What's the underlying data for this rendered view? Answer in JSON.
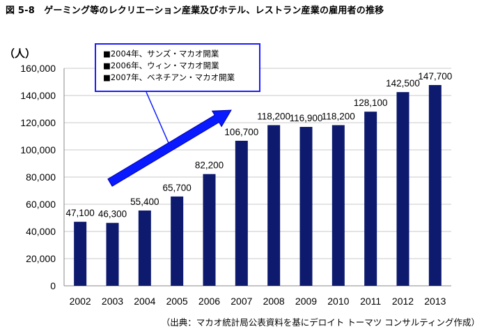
{
  "title": "図 5-8　ゲーミング等のレクリエーション産業及びホテル、レストラン産業の雇用者の推移",
  "source": "（出典：マカオ統計局公表資料を基にデロイト トーマツ コンサルティング作成）",
  "annotation": [
    "■2004年、サンズ・マカオ開業",
    "■2006年、ウィン・マカオ開業",
    "■2007年、ベネチアン・マカオ開業"
  ],
  "colors": {
    "bar": "#0d1a6e",
    "arrow": "#0a1aff",
    "grid": "#c8c8c8"
  },
  "chart_data": {
    "type": "bar",
    "categories": [
      "2002",
      "2003",
      "2004",
      "2005",
      "2006",
      "2007",
      "2008",
      "2009",
      "2010",
      "2011",
      "2012",
      "2013"
    ],
    "values": [
      47100,
      46300,
      55400,
      65700,
      82200,
      106700,
      118200,
      116900,
      118200,
      128100,
      142500,
      147700
    ],
    "value_labels": [
      "47,100",
      "46,300",
      "55,400",
      "65,700",
      "82,200",
      "106,700",
      "118,200",
      "116,900",
      "118,200",
      "128,100",
      "142,500",
      "147,700"
    ],
    "ylabel": "（人）",
    "ylim": [
      0,
      160000
    ],
    "yticks": [
      "0",
      "20,000",
      "40,000",
      "60,000",
      "80,000",
      "100,000",
      "120,000",
      "140,000",
      "160,000"
    ],
    "grid": true
  }
}
